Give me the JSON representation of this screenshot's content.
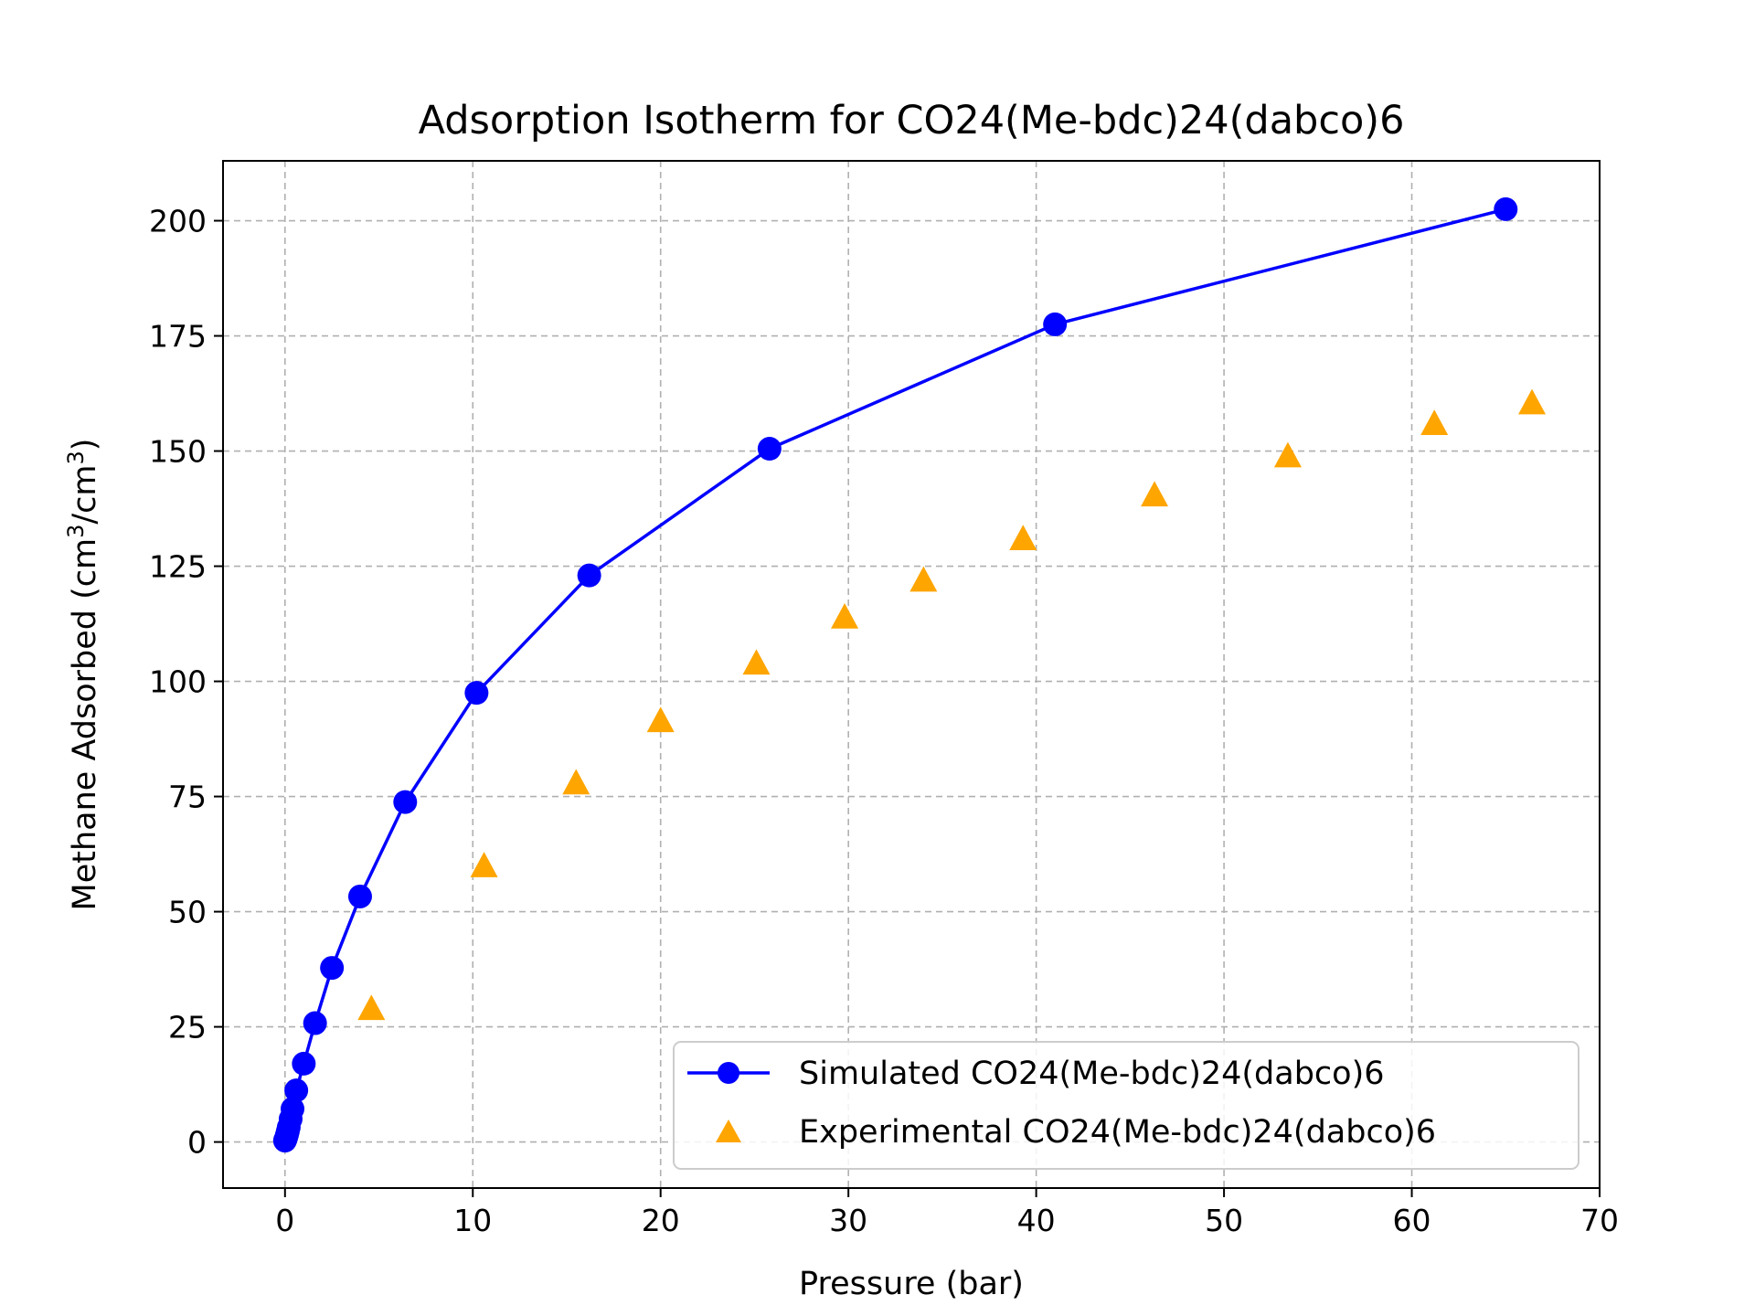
{
  "chart_data": {
    "type": "line",
    "title": "Adsorption Isotherm for CO24(Me-bdc)24(dabco)6",
    "xlabel": "Pressure (bar)",
    "ylabel_main": "Methane Adsorbed (cm",
    "ylabel_mid": "/cm",
    "ylabel_end": ")",
    "ylabel_sup": "3",
    "xlim": [
      -3.3,
      70
    ],
    "ylim": [
      -10,
      213
    ],
    "xticks": [
      0,
      10,
      20,
      30,
      40,
      50,
      60,
      70
    ],
    "yticks": [
      0,
      25,
      50,
      75,
      100,
      125,
      150,
      175,
      200
    ],
    "grid": true,
    "legend_position": "bottom-right",
    "series": [
      {
        "name": "Simulated CO24(Me-bdc)24(dabco)6",
        "kind": "line-markers",
        "color": "#0000ff",
        "marker": "circle",
        "x": [
          0.0,
          0.05,
          0.1,
          0.15,
          0.2,
          0.3,
          0.4,
          0.6,
          1.0,
          1.6,
          2.5,
          4.0,
          6.4,
          10.2,
          16.2,
          25.8,
          41.0,
          65.0
        ],
        "y": [
          0.3,
          0.8,
          1.5,
          2.3,
          3.2,
          5.0,
          7.2,
          11.2,
          17.0,
          25.8,
          37.8,
          53.3,
          73.8,
          97.5,
          123.0,
          150.5,
          177.5,
          202.5
        ]
      },
      {
        "name": "Experimental CO24(Me-bdc)24(dabco)6",
        "kind": "markers",
        "color": "#ffa500",
        "marker": "triangle",
        "x": [
          4.6,
          10.6,
          15.5,
          20.0,
          25.1,
          29.8,
          34.0,
          39.3,
          46.3,
          53.4,
          61.2,
          66.4
        ],
        "y": [
          29.0,
          60.0,
          78.0,
          91.5,
          104.0,
          114.0,
          122.0,
          131.0,
          140.5,
          149.0,
          156.0,
          160.5
        ]
      }
    ]
  }
}
